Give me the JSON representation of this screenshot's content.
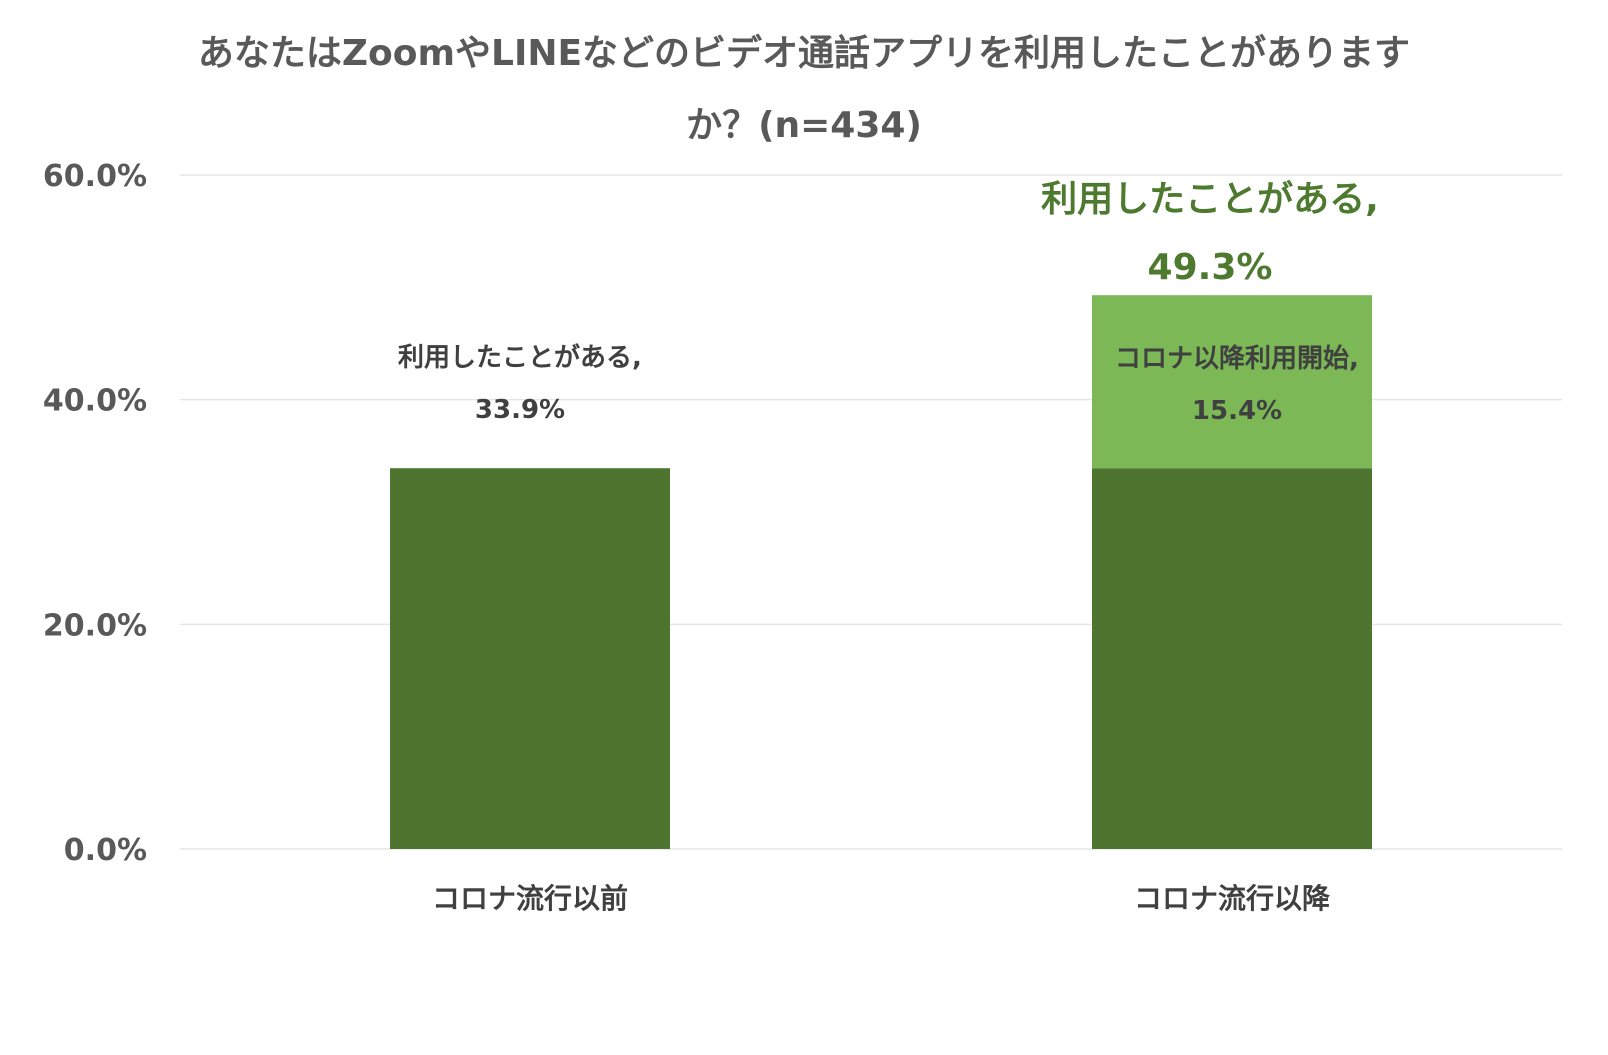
{
  "chart_data": {
    "type": "bar",
    "stacked": true,
    "title": "あなたはZoomやLINEなどのビデオ通話アプリを利用したことがありますか？(n=434)",
    "title_lines": [
      "あなたはZoomやLINEなどのビデオ通話アプリを利用したことがあります",
      "か？(n=434)"
    ],
    "categories": [
      "コロナ流行以前",
      "コロナ流行以降"
    ],
    "series": [
      {
        "values": [
          33.9,
          33.9
        ],
        "color": "#4e752f"
      },
      {
        "values": [
          0,
          15.4
        ],
        "color": "#7cb856"
      }
    ],
    "ylim": [
      0,
      60
    ],
    "yticks": [
      0,
      20,
      40,
      60
    ],
    "ytick_labels": [
      "0.0%",
      "20.0%",
      "40.0%",
      "60.0%"
    ],
    "grid": true,
    "legend": "none",
    "data_labels": [
      {
        "category": "コロナ流行以前",
        "line1": "利用したことがある,",
        "line2": "33.9%",
        "value": 33.9,
        "position": "above-bar"
      },
      {
        "category": "コロナ流行以降",
        "line1": "コロナ以降利用開始,",
        "line2": "15.4%",
        "value": 15.4,
        "position": "inside-top-segment"
      }
    ],
    "total_labels": [
      {
        "category": "コロナ流行以降",
        "line1": "利用したことがある,",
        "line2": "49.3%",
        "value": 49.3
      }
    ],
    "colors": {
      "title": "#595959",
      "axis_text": "#595959",
      "label_text": "#404040",
      "total_label": "#4e7a2f",
      "gridline": "#e6e6e6"
    }
  }
}
